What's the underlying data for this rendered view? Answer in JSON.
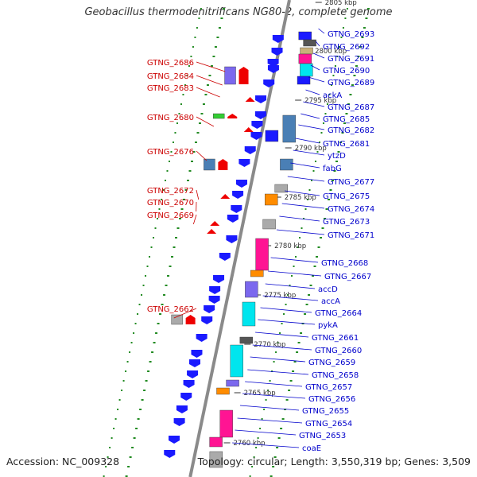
{
  "title": "Geobacillus thermodenitrificans NG80-2, complete genome",
  "footer": {
    "accession": "Accession: NC_009328",
    "summary": "Topology: circular; Length: 3,550,319 bp; Genes: 3,509"
  },
  "colors": {
    "backbone": "#8a8a8a",
    "left_label": "#cc0000",
    "right_label": "#0000cc",
    "dot": "#228b22",
    "tick": "#228b22",
    "blue": "#1a1aff",
    "steel": "#4a7fb5",
    "pink": "#ff1493",
    "cyan": "#00e5ee",
    "purple": "#7b68ee",
    "orange": "#ff8c00",
    "green": "#33cc33",
    "grey": "#aaaaaa",
    "dark": "#555555",
    "tan": "#c8b07a",
    "red": "#ee0000"
  },
  "scale_labels": [
    "2805 kbp",
    "2800 kbp",
    "2795 kbp",
    "2790 kbp",
    "2785 kbp",
    "2780 kbp",
    "2775 kbp",
    "2770 kbp",
    "2765 kbp",
    "2760 kbp"
  ],
  "left_genes": [
    "GTNG_2686",
    "GTNG_2684",
    "GTNG_2683",
    "GTNG_2680",
    "GTNG_2676",
    "GTNG_2672",
    "GTNG_2670",
    "GTNG_2669",
    "GTNG_2662"
  ],
  "right_genes": [
    "GTNG_2693",
    "GTNG_2692",
    "GTNG_2691",
    "GTNG_2690",
    "GTNG_2689",
    "ackA",
    "GTNG_2687",
    "GTNG_2685",
    "GTNG_2682",
    "GTNG_2681",
    "ytzD",
    "fabG",
    "GTNG_2677",
    "GTNG_2675",
    "GTNG_2674",
    "GTNG_2673",
    "GTNG_2671",
    "GTNG_2668",
    "GTNG_2667",
    "accD",
    "accA",
    "GTNG_2664",
    "pykA",
    "GTNG_2661",
    "GTNG_2660",
    "GTNG_2659",
    "GTNG_2658",
    "GTNG_2657",
    "GTNG_2656",
    "GTNG_2655",
    "GTNG_2654",
    "GTNG_2653",
    "coaE"
  ]
}
